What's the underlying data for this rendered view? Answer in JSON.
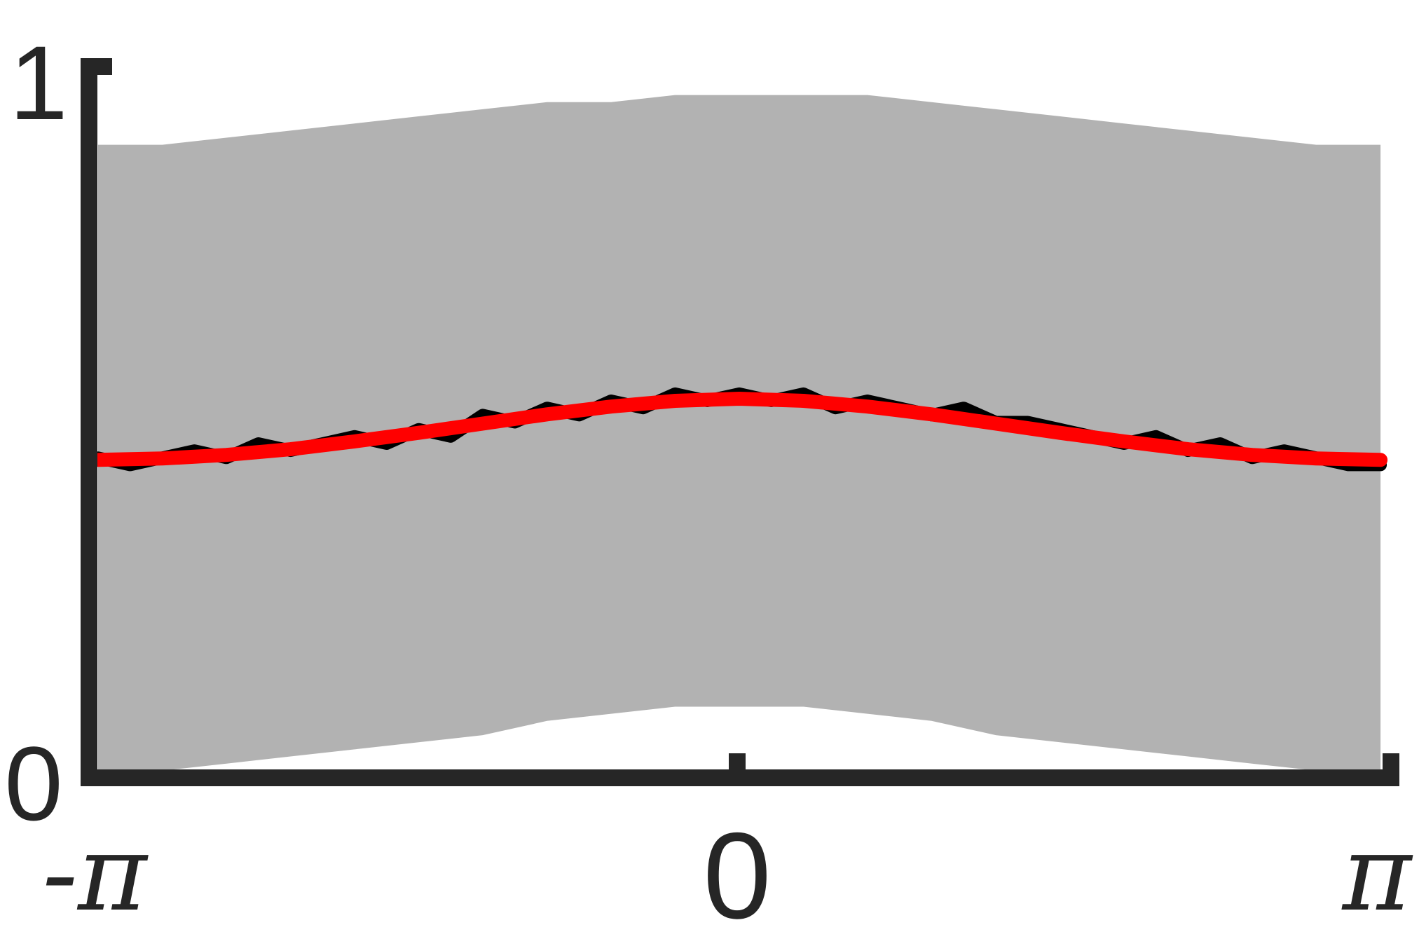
{
  "chart_data": {
    "type": "line",
    "title": "",
    "xlabel": "",
    "ylabel": "",
    "xlim": [
      -3.14159,
      3.14159
    ],
    "ylim": [
      0,
      1
    ],
    "grid": false,
    "legend": "none",
    "x_ticks": [
      {
        "value": -3.14159,
        "label": "-π"
      },
      {
        "value": 0,
        "label": "0"
      },
      {
        "value": 3.14159,
        "label": "π"
      }
    ],
    "y_ticks": [
      {
        "value": 0,
        "label": "0"
      },
      {
        "value": 1,
        "label": "1"
      }
    ],
    "colors": {
      "band": "#b2b2b2",
      "noisy_line": "#000000",
      "fit_line": "#ff0000",
      "axis": "#262626"
    },
    "series": [
      {
        "kind": "band",
        "x": [
          -3.142,
          -2.827,
          -2.513,
          -2.199,
          -1.885,
          -1.571,
          -1.257,
          -0.942,
          -0.628,
          -0.314,
          0.0,
          0.314,
          0.628,
          0.942,
          1.257,
          1.571,
          1.885,
          2.199,
          2.513,
          2.827,
          3.142
        ],
        "upper": [
          0.89,
          0.89,
          0.9,
          0.91,
          0.92,
          0.93,
          0.94,
          0.95,
          0.95,
          0.96,
          0.96,
          0.96,
          0.96,
          0.95,
          0.94,
          0.93,
          0.92,
          0.91,
          0.9,
          0.89,
          0.89
        ],
        "lower": [
          0.0,
          0.01,
          0.02,
          0.03,
          0.04,
          0.05,
          0.06,
          0.08,
          0.09,
          0.1,
          0.1,
          0.1,
          0.09,
          0.08,
          0.06,
          0.05,
          0.04,
          0.03,
          0.02,
          0.01,
          0.0
        ]
      },
      {
        "kind": "noisy",
        "x": [
          -3.142,
          -2.985,
          -2.827,
          -2.67,
          -2.513,
          -2.356,
          -2.199,
          -2.042,
          -1.885,
          -1.728,
          -1.571,
          -1.414,
          -1.257,
          -1.1,
          -0.942,
          -0.785,
          -0.628,
          -0.471,
          -0.314,
          -0.157,
          0.0,
          0.157,
          0.314,
          0.471,
          0.628,
          0.785,
          0.942,
          1.1,
          1.257,
          1.414,
          1.571,
          1.728,
          1.885,
          2.042,
          2.199,
          2.356,
          2.513,
          2.67,
          2.827,
          2.985,
          3.142
        ],
        "y": [
          0.45,
          0.44,
          0.45,
          0.46,
          0.45,
          0.47,
          0.46,
          0.47,
          0.48,
          0.47,
          0.49,
          0.48,
          0.51,
          0.5,
          0.52,
          0.51,
          0.53,
          0.52,
          0.54,
          0.53,
          0.54,
          0.53,
          0.54,
          0.52,
          0.53,
          0.52,
          0.51,
          0.52,
          0.5,
          0.5,
          0.49,
          0.48,
          0.47,
          0.48,
          0.46,
          0.47,
          0.45,
          0.46,
          0.45,
          0.44,
          0.44
        ]
      },
      {
        "kind": "fit",
        "x": [
          -3.142,
          -2.827,
          -2.513,
          -2.199,
          -1.885,
          -1.571,
          -1.257,
          -0.942,
          -0.628,
          -0.314,
          0.0,
          0.314,
          0.628,
          0.942,
          1.257,
          1.571,
          1.885,
          2.199,
          2.513,
          2.827,
          3.142
        ],
        "y": [
          0.447,
          0.449,
          0.454,
          0.462,
          0.473,
          0.485,
          0.498,
          0.511,
          0.522,
          0.53,
          0.533,
          0.53,
          0.522,
          0.511,
          0.498,
          0.485,
          0.473,
          0.462,
          0.454,
          0.449,
          0.447
        ]
      }
    ]
  }
}
